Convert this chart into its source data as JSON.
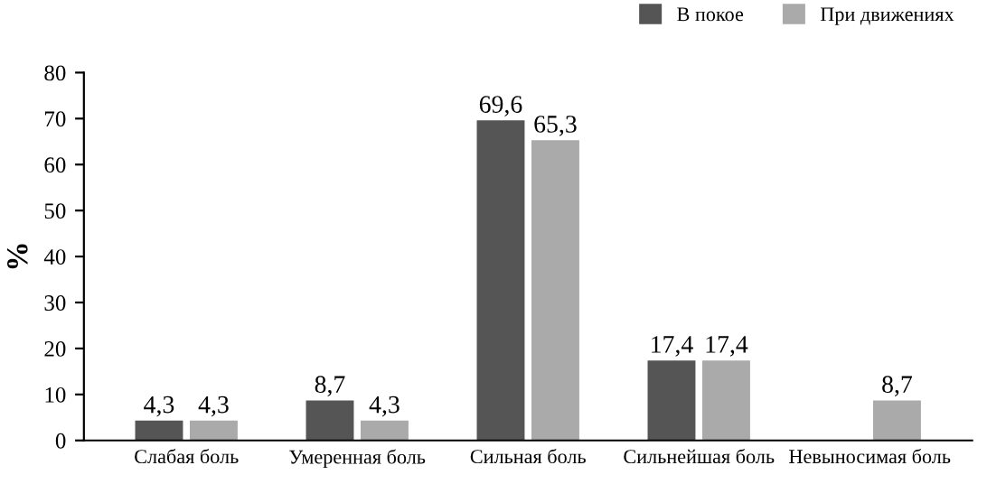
{
  "chart_data": {
    "type": "bar",
    "ylabel": "%",
    "categories": [
      "Слабая боль",
      "Умеренная боль",
      "Сильная боль",
      "Сильнейшая боль",
      "Невыносимая боль"
    ],
    "series": [
      {
        "name": "В покое",
        "color": "#555555",
        "values": [
          4.3,
          8.7,
          69.6,
          17.4,
          null
        ],
        "value_labels": [
          "4,3",
          "8,7",
          "69,6",
          "17,4",
          null
        ]
      },
      {
        "name": "При движениях",
        "color": "#aaaaaa",
        "values": [
          4.3,
          4.3,
          65.3,
          17.4,
          8.7
        ],
        "value_labels": [
          "4,3",
          "4,3",
          "65,3",
          "17,4",
          "8,7"
        ]
      }
    ],
    "ylim": [
      0,
      80
    ],
    "yticks": [
      0,
      10,
      20,
      30,
      40,
      50,
      60,
      70,
      80
    ],
    "grid": false,
    "legend": "top right"
  }
}
